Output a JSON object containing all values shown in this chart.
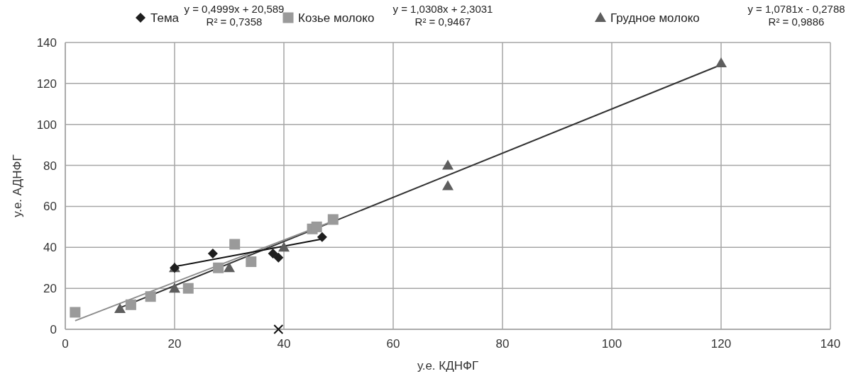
{
  "chart_data": {
    "type": "scatter",
    "xlabel": "у.е. КДНФГ",
    "ylabel": "у.е. АДНФГ",
    "xlim": [
      0,
      140
    ],
    "ylim": [
      0,
      140
    ],
    "xticks": [
      0,
      20,
      40,
      60,
      80,
      100,
      120,
      140
    ],
    "yticks": [
      0,
      20,
      40,
      60,
      80,
      100,
      120,
      140
    ],
    "grid": true,
    "legend": "top",
    "annotations": [
      "y = 0,4999x + 20,589\nR² = 0,7358",
      "y = 1,0308x + 2,3031\nR² = 0,9467",
      "y = 1,0781x - 0,2788\nR² = 0,9886"
    ],
    "series": [
      {
        "name": "Тема",
        "marker": "diamond",
        "color": "#1e1e1e",
        "x": [
          20,
          27,
          38,
          39,
          47
        ],
        "values": [
          30,
          37,
          37,
          35,
          45
        ]
      },
      {
        "name": "Козье молоко",
        "marker": "square",
        "color": "#9a9a9a",
        "x": [
          1.8,
          12,
          15.6,
          22.5,
          28,
          31,
          34,
          45.2,
          46,
          49
        ],
        "values": [
          8.3,
          12,
          16,
          20,
          30,
          41.5,
          33,
          49,
          50,
          53.6
        ]
      },
      {
        "name": "Грудное молоко",
        "marker": "triangle",
        "color": "#5e5e5e",
        "x": [
          10,
          20,
          20,
          30,
          40,
          70,
          70,
          120
        ],
        "values": [
          10,
          20,
          30,
          30,
          40,
          80,
          70,
          130
        ]
      },
      {
        "marker": "cross",
        "color": "#111111",
        "x": [
          39
        ],
        "values": [
          0
        ]
      },
      {
        "type": "line",
        "color": "#111111",
        "x": [
          20,
          47
        ],
        "values": [
          30.6,
          44.1
        ]
      },
      {
        "type": "line",
        "color": "#8c8c8c",
        "x": [
          1.8,
          49
        ],
        "values": [
          4.2,
          52.8
        ]
      },
      {
        "type": "line",
        "color": "#333333",
        "x": [
          10,
          120
        ],
        "values": [
          10.5,
          129.1
        ]
      }
    ]
  }
}
